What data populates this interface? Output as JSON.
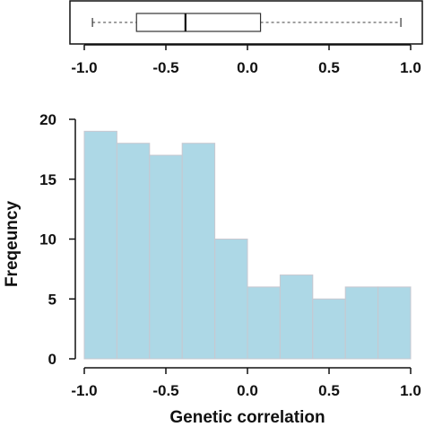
{
  "chart_data": [
    {
      "type": "box",
      "orientation": "horizontal",
      "whisker_low": -0.95,
      "q1": -0.68,
      "median": -0.38,
      "q3": 0.08,
      "whisker_high": 0.94,
      "xlim": [
        -1.0,
        1.0
      ],
      "x_ticks": [
        "-1.0",
        "-0.5",
        "0.0",
        "0.5",
        "1.0"
      ],
      "x_tick_values": [
        -1.0,
        -0.5,
        0.0,
        0.5,
        1.0
      ],
      "colors": {
        "box_stroke": "#333333",
        "whisker": "#666666"
      }
    },
    {
      "type": "bar",
      "subtype": "histogram",
      "bin_edges": [
        -1.0,
        -0.8,
        -0.6,
        -0.4,
        -0.2,
        0.0,
        0.2,
        0.4,
        0.6,
        0.8,
        1.0
      ],
      "values": [
        19,
        18,
        17,
        18,
        10,
        6,
        7,
        5,
        6,
        6
      ],
      "xlabel": "Genetic correlation",
      "ylabel": "Freqeuncy",
      "xlim": [
        -1.0,
        1.0
      ],
      "ylim": [
        0,
        20
      ],
      "x_ticks": [
        "-1.0",
        "-0.5",
        "0.0",
        "0.5",
        "1.0"
      ],
      "x_tick_values": [
        -1.0,
        -0.5,
        0.0,
        0.5,
        1.0
      ],
      "y_ticks": [
        "0",
        "5",
        "10",
        "15",
        "20"
      ],
      "y_tick_values": [
        0,
        5,
        10,
        15,
        20
      ],
      "colors": {
        "bar_fill": "#add8e6",
        "bar_stroke": "#c8c8d0"
      }
    }
  ]
}
